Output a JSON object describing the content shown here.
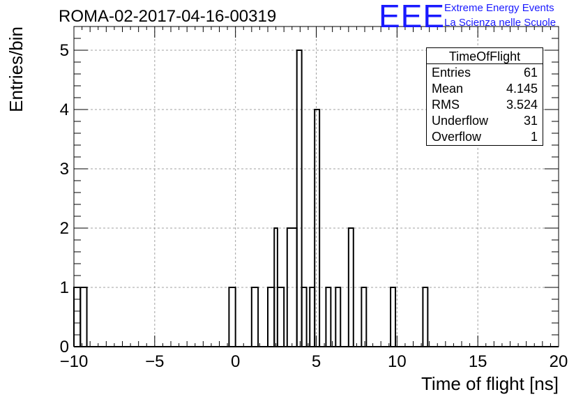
{
  "header": {
    "run_title": "ROMA-02-2017-04-16-00319",
    "logo_text": "EEE",
    "logo_line1": "Extreme Energy Events",
    "logo_line2": "La Scienza nelle Scuole",
    "logo_color": "#1a1aff"
  },
  "stats": {
    "title": "TimeOfFlight",
    "rows": [
      {
        "label": "Entries",
        "value": "61"
      },
      {
        "label": "Mean",
        "value": "4.145"
      },
      {
        "label": "RMS",
        "value": "3.524"
      },
      {
        "label": "Underflow",
        "value": "31"
      },
      {
        "label": "Overflow",
        "value": "1"
      }
    ]
  },
  "chart_data": {
    "type": "bar",
    "style": "step-histogram",
    "xlabel": "Time of flight [ns]",
    "ylabel": "Entries/bin",
    "xlim": [
      -10,
      20
    ],
    "ylim": [
      0,
      5.4
    ],
    "grid": true,
    "bin_width": 0.4,
    "x_ticks": [
      -10,
      -5,
      0,
      5,
      10,
      15,
      20
    ],
    "x_tick_labels": [
      "−10",
      "−5",
      "0",
      "5",
      "10",
      "15",
      "20"
    ],
    "y_ticks": [
      0,
      1,
      2,
      3,
      4,
      5
    ],
    "y_tick_labels": [
      "0",
      "1",
      "2",
      "3",
      "4",
      "5"
    ],
    "bins": [
      {
        "x0": -10.0,
        "x1": -9.6,
        "value": 1
      },
      {
        "x0": -9.6,
        "x1": -9.2,
        "value": 1
      },
      {
        "x0": -0.4,
        "x1": 0.0,
        "value": 1
      },
      {
        "x0": 1.0,
        "x1": 1.4,
        "value": 1
      },
      {
        "x0": 2.0,
        "x1": 2.4,
        "value": 1
      },
      {
        "x0": 2.4,
        "x1": 2.6,
        "value": 2
      },
      {
        "x0": 2.6,
        "x1": 3.0,
        "value": 1
      },
      {
        "x0": 3.2,
        "x1": 3.8,
        "value": 2
      },
      {
        "x0": 3.8,
        "x1": 4.1,
        "value": 5
      },
      {
        "x0": 4.1,
        "x1": 4.4,
        "value": 1
      },
      {
        "x0": 4.6,
        "x1": 4.9,
        "value": 1
      },
      {
        "x0": 4.9,
        "x1": 5.2,
        "value": 4
      },
      {
        "x0": 5.6,
        "x1": 5.9,
        "value": 1
      },
      {
        "x0": 6.2,
        "x1": 6.5,
        "value": 1
      },
      {
        "x0": 7.0,
        "x1": 7.3,
        "value": 2
      },
      {
        "x0": 7.8,
        "x1": 8.1,
        "value": 1
      },
      {
        "x0": 9.6,
        "x1": 9.9,
        "value": 1
      },
      {
        "x0": 11.6,
        "x1": 11.9,
        "value": 1
      }
    ]
  }
}
